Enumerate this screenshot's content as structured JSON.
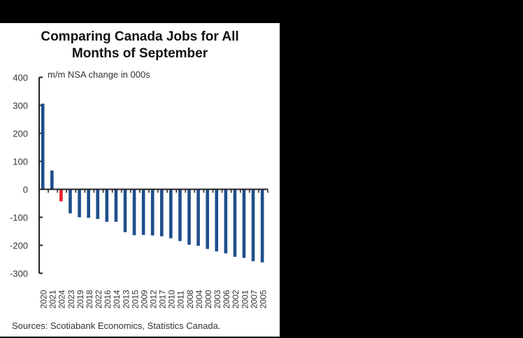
{
  "chart_data": {
    "type": "bar",
    "title": "Comparing Canada Jobs for All Months of September",
    "title_lines": [
      "Comparing Canada Jobs for All",
      "Months of September"
    ],
    "subtitle": "m/m NSA change in 000s",
    "xlabel": "",
    "ylabel": "m/m NSA change in 000s",
    "ylim": [
      -300,
      400
    ],
    "yticks": [
      400,
      300,
      200,
      100,
      0,
      -100,
      -200,
      -300
    ],
    "grid": false,
    "legend": null,
    "categories": [
      "2020",
      "2021",
      "2024",
      "2023",
      "2019",
      "2018",
      "2022",
      "2016",
      "2014",
      "2013",
      "2015",
      "2009",
      "2012",
      "2017",
      "2010",
      "2011",
      "2008",
      "2004",
      "2000",
      "2003",
      "2006",
      "2002",
      "2001",
      "2007",
      "2005"
    ],
    "values": [
      306,
      67,
      -43,
      -86,
      -100,
      -102,
      -106,
      -116,
      -116,
      -153,
      -164,
      -163,
      -165,
      -168,
      -175,
      -185,
      -198,
      -202,
      -213,
      -222,
      -229,
      -241,
      -245,
      -257,
      -261
    ],
    "highlight_category": "2024",
    "colors": {
      "default": "#1f4e8c",
      "highlight": "#e8202a"
    },
    "source": "Sources: Scotiabank Economics, Statistics Canada."
  }
}
